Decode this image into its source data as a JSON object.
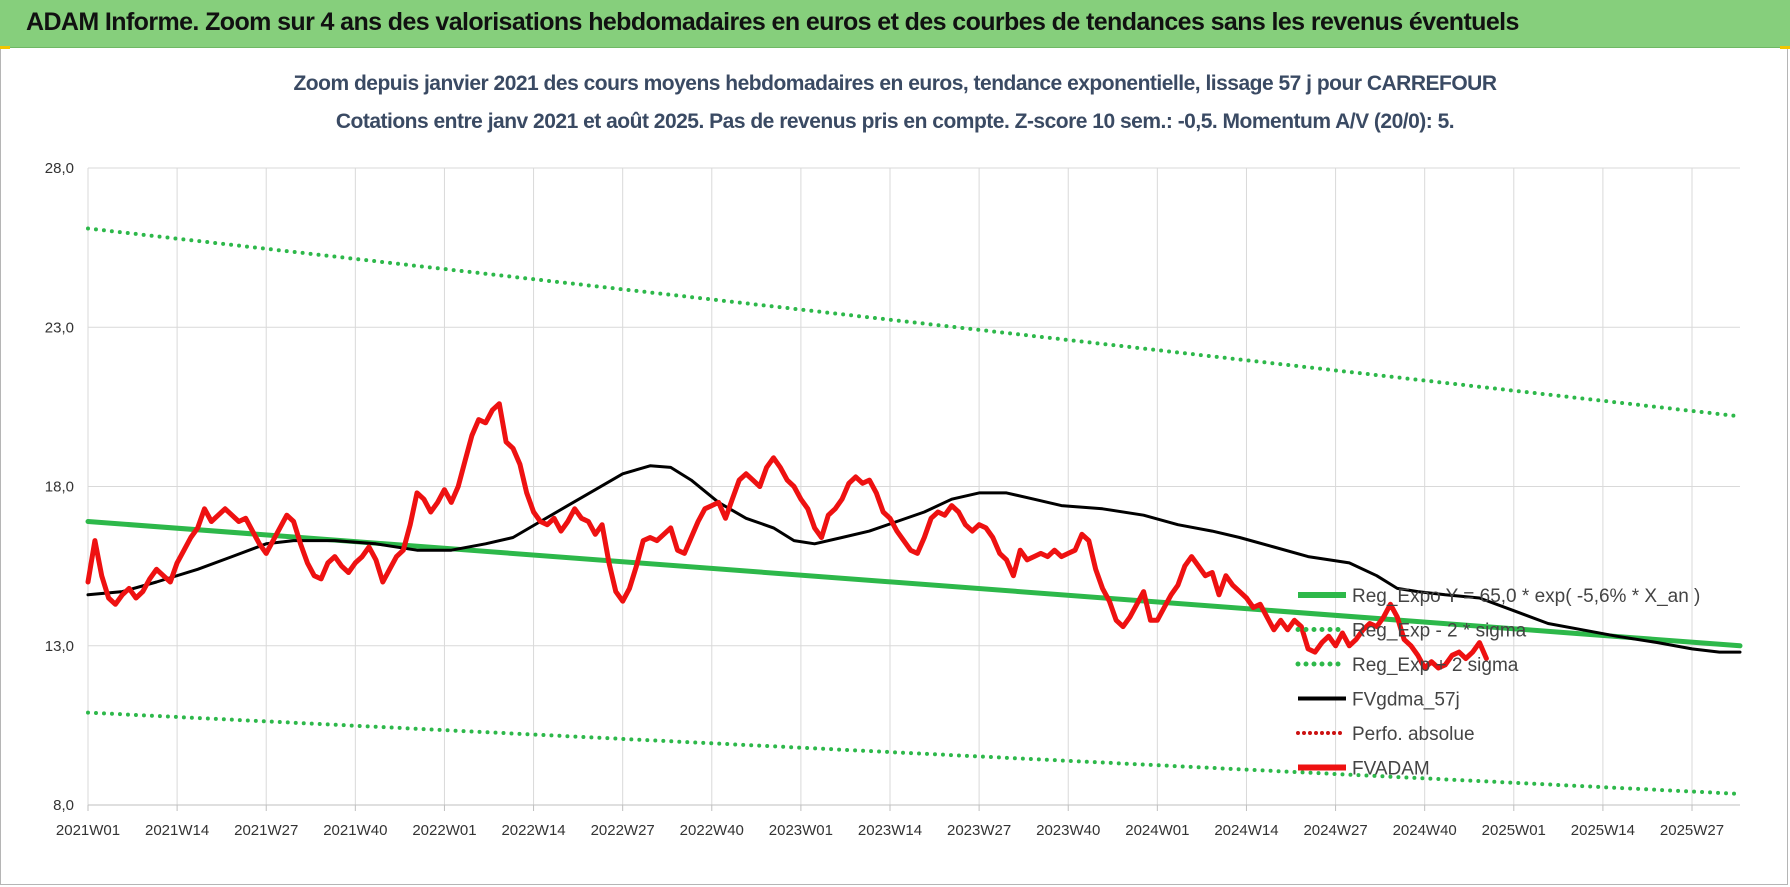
{
  "header": {
    "title": "ADAM Informe. Zoom sur 4 ans des valorisations hebdomadaires en euros et des courbes de tendances sans les revenus éventuels"
  },
  "colors": {
    "banner": "#86cf7c",
    "trend": "#2db84a",
    "price": "#ee1111",
    "smooth": "#000000",
    "perf": "#cc1111"
  },
  "chart_data": {
    "type": "line",
    "title": "Zoom depuis janvier 2021 des cours moyens hebdomadaires en euros, tendance exponentielle, lissage 57 j pour CARREFOUR",
    "subtitle": "Cotations entre janv 2021 et août 2025.  Pas de revenus pris en compte. Z-score 10 sem.: -0,5. Momentum A/V (20/0): 5.",
    "xlabel": "",
    "ylabel": "",
    "ylim": [
      8,
      28
    ],
    "yticks": [
      "28,0",
      "23,0",
      "18,0",
      "13,0",
      "8,0"
    ],
    "ytick_values": [
      28,
      23,
      18,
      13,
      8
    ],
    "xticks": [
      "2021W01",
      "2021W14",
      "2021W27",
      "2021W40",
      "2022W01",
      "2022W14",
      "2022W27",
      "2022W40",
      "2023W01",
      "2023W14",
      "2023W27",
      "2023W40",
      "2024W01",
      "2024W14",
      "2024W27",
      "2024W40",
      "2025W01",
      "2025W14",
      "2025W27"
    ],
    "weeks_total": 242,
    "grid": true,
    "legend_position": "bottom-right",
    "legend": [
      "Reg_Expo Y = 65,0 * exp( -5,6% * X_an )",
      "Reg_Exp - 2 * sigma",
      "Reg_Exp + 2 sigma",
      "FVgdma_57j",
      "Perfo. absolue",
      "FVADAM"
    ],
    "series": [
      {
        "name": "Reg_Expo Y = 65,0 * exp( -5,6% * X_an )",
        "style": "solid",
        "color": "#2db84a",
        "points": [
          [
            0,
            16.9
          ],
          [
            241,
            13.0
          ]
        ]
      },
      {
        "name": "Reg_Exp - 2 * sigma",
        "style": "dotted",
        "color": "#2db84a",
        "points": [
          [
            0,
            10.9
          ],
          [
            241,
            8.35
          ]
        ]
      },
      {
        "name": "Reg_Exp + 2 sigma",
        "style": "dotted",
        "color": "#2db84a",
        "points": [
          [
            0,
            26.1
          ],
          [
            241,
            20.2
          ]
        ]
      },
      {
        "name": "FVgdma_57j",
        "style": "solid",
        "color": "#000000",
        "points": [
          [
            0,
            14.6
          ],
          [
            5,
            14.7
          ],
          [
            10,
            15.0
          ],
          [
            16,
            15.4
          ],
          [
            21,
            15.8
          ],
          [
            26,
            16.2
          ],
          [
            30,
            16.3
          ],
          [
            36,
            16.3
          ],
          [
            42,
            16.2
          ],
          [
            48,
            16.0
          ],
          [
            53,
            16.0
          ],
          [
            58,
            16.2
          ],
          [
            62,
            16.4
          ],
          [
            66,
            16.9
          ],
          [
            70,
            17.4
          ],
          [
            74,
            17.9
          ],
          [
            78,
            18.4
          ],
          [
            82,
            18.65
          ],
          [
            85,
            18.6
          ],
          [
            88,
            18.2
          ],
          [
            92,
            17.5
          ],
          [
            96,
            17.0
          ],
          [
            100,
            16.7
          ],
          [
            103,
            16.3
          ],
          [
            106,
            16.2
          ],
          [
            110,
            16.4
          ],
          [
            114,
            16.6
          ],
          [
            118,
            16.9
          ],
          [
            122,
            17.2
          ],
          [
            126,
            17.6
          ],
          [
            130,
            17.8
          ],
          [
            134,
            17.8
          ],
          [
            138,
            17.6
          ],
          [
            142,
            17.4
          ],
          [
            148,
            17.3
          ],
          [
            154,
            17.1
          ],
          [
            159,
            16.8
          ],
          [
            164,
            16.6
          ],
          [
            168,
            16.4
          ],
          [
            173,
            16.1
          ],
          [
            178,
            15.8
          ],
          [
            184,
            15.6
          ],
          [
            188,
            15.2
          ],
          [
            191,
            14.8
          ],
          [
            194,
            14.7
          ],
          [
            198,
            14.6
          ],
          [
            203,
            14.5
          ],
          [
            208,
            14.1
          ],
          [
            213,
            13.7
          ],
          [
            218,
            13.5
          ],
          [
            223,
            13.3
          ],
          [
            229,
            13.1
          ],
          [
            234,
            12.9
          ],
          [
            238,
            12.8
          ],
          [
            241,
            12.8
          ]
        ]
      },
      {
        "name": "Perfo. absolue",
        "style": "dotted",
        "color": "#cc1111",
        "points": []
      },
      {
        "name": "FVADAM",
        "style": "solid",
        "color": "#ee1111",
        "points": [
          [
            0,
            15.0
          ],
          [
            1,
            16.3
          ],
          [
            2,
            15.2
          ],
          [
            3,
            14.5
          ],
          [
            4,
            14.3
          ],
          [
            5,
            14.6
          ],
          [
            6,
            14.8
          ],
          [
            7,
            14.5
          ],
          [
            8,
            14.7
          ],
          [
            9,
            15.1
          ],
          [
            10,
            15.4
          ],
          [
            11,
            15.2
          ],
          [
            12,
            15.0
          ],
          [
            13,
            15.6
          ],
          [
            14,
            16.0
          ],
          [
            15,
            16.4
          ],
          [
            16,
            16.7
          ],
          [
            17,
            17.3
          ],
          [
            18,
            16.9
          ],
          [
            19,
            17.1
          ],
          [
            20,
            17.3
          ],
          [
            21,
            17.1
          ],
          [
            22,
            16.9
          ],
          [
            23,
            17.0
          ],
          [
            24,
            16.6
          ],
          [
            25,
            16.2
          ],
          [
            26,
            15.9
          ],
          [
            27,
            16.3
          ],
          [
            28,
            16.7
          ],
          [
            29,
            17.1
          ],
          [
            30,
            16.9
          ],
          [
            31,
            16.2
          ],
          [
            32,
            15.6
          ],
          [
            33,
            15.2
          ],
          [
            34,
            15.1
          ],
          [
            35,
            15.6
          ],
          [
            36,
            15.8
          ],
          [
            37,
            15.5
          ],
          [
            38,
            15.3
          ],
          [
            39,
            15.6
          ],
          [
            40,
            15.8
          ],
          [
            41,
            16.1
          ],
          [
            42,
            15.7
          ],
          [
            43,
            15.0
          ],
          [
            44,
            15.4
          ],
          [
            45,
            15.8
          ],
          [
            46,
            16.0
          ],
          [
            47,
            16.8
          ],
          [
            48,
            17.8
          ],
          [
            49,
            17.6
          ],
          [
            50,
            17.2
          ],
          [
            51,
            17.5
          ],
          [
            52,
            17.9
          ],
          [
            53,
            17.5
          ],
          [
            54,
            18.0
          ],
          [
            55,
            18.8
          ],
          [
            56,
            19.6
          ],
          [
            57,
            20.1
          ],
          [
            58,
            20.0
          ],
          [
            59,
            20.4
          ],
          [
            60,
            20.6
          ],
          [
            61,
            19.4
          ],
          [
            62,
            19.2
          ],
          [
            63,
            18.7
          ],
          [
            64,
            17.8
          ],
          [
            65,
            17.2
          ],
          [
            66,
            16.9
          ],
          [
            67,
            16.8
          ],
          [
            68,
            17.0
          ],
          [
            69,
            16.6
          ],
          [
            70,
            16.9
          ],
          [
            71,
            17.3
          ],
          [
            72,
            17.0
          ],
          [
            73,
            16.9
          ],
          [
            74,
            16.5
          ],
          [
            75,
            16.8
          ],
          [
            76,
            15.6
          ],
          [
            77,
            14.7
          ],
          [
            78,
            14.4
          ],
          [
            79,
            14.8
          ],
          [
            80,
            15.5
          ],
          [
            81,
            16.3
          ],
          [
            82,
            16.4
          ],
          [
            83,
            16.3
          ],
          [
            84,
            16.5
          ],
          [
            85,
            16.7
          ],
          [
            86,
            16.0
          ],
          [
            87,
            15.9
          ],
          [
            88,
            16.4
          ],
          [
            89,
            16.9
          ],
          [
            90,
            17.3
          ],
          [
            91,
            17.4
          ],
          [
            92,
            17.5
          ],
          [
            93,
            17.0
          ],
          [
            94,
            17.6
          ],
          [
            95,
            18.2
          ],
          [
            96,
            18.4
          ],
          [
            97,
            18.2
          ],
          [
            98,
            18.0
          ],
          [
            99,
            18.6
          ],
          [
            100,
            18.9
          ],
          [
            101,
            18.6
          ],
          [
            102,
            18.2
          ],
          [
            103,
            18.0
          ],
          [
            104,
            17.6
          ],
          [
            105,
            17.3
          ],
          [
            106,
            16.7
          ],
          [
            107,
            16.4
          ],
          [
            108,
            17.1
          ],
          [
            109,
            17.3
          ],
          [
            110,
            17.6
          ],
          [
            111,
            18.1
          ],
          [
            112,
            18.3
          ],
          [
            113,
            18.1
          ],
          [
            114,
            18.2
          ],
          [
            115,
            17.8
          ],
          [
            116,
            17.2
          ],
          [
            117,
            17.0
          ],
          [
            118,
            16.6
          ],
          [
            119,
            16.3
          ],
          [
            120,
            16.0
          ],
          [
            121,
            15.9
          ],
          [
            122,
            16.4
          ],
          [
            123,
            17.0
          ],
          [
            124,
            17.2
          ],
          [
            125,
            17.1
          ],
          [
            126,
            17.4
          ],
          [
            127,
            17.2
          ],
          [
            128,
            16.8
          ],
          [
            129,
            16.6
          ],
          [
            130,
            16.8
          ],
          [
            131,
            16.7
          ],
          [
            132,
            16.4
          ],
          [
            133,
            15.9
          ],
          [
            134,
            15.7
          ],
          [
            135,
            15.2
          ],
          [
            136,
            16.0
          ],
          [
            137,
            15.7
          ],
          [
            138,
            15.8
          ],
          [
            139,
            15.9
          ],
          [
            140,
            15.8
          ],
          [
            141,
            16.0
          ],
          [
            142,
            15.8
          ],
          [
            143,
            15.9
          ],
          [
            144,
            16.0
          ],
          [
            145,
            16.5
          ],
          [
            146,
            16.3
          ],
          [
            147,
            15.4
          ],
          [
            148,
            14.8
          ],
          [
            149,
            14.4
          ],
          [
            150,
            13.8
          ],
          [
            151,
            13.6
          ],
          [
            152,
            13.9
          ],
          [
            153,
            14.3
          ],
          [
            154,
            14.7
          ],
          [
            155,
            13.8
          ],
          [
            156,
            13.8
          ],
          [
            157,
            14.2
          ],
          [
            158,
            14.6
          ],
          [
            159,
            14.9
          ],
          [
            160,
            15.5
          ],
          [
            161,
            15.8
          ],
          [
            162,
            15.5
          ],
          [
            163,
            15.2
          ],
          [
            164,
            15.3
          ],
          [
            165,
            14.6
          ],
          [
            166,
            15.2
          ],
          [
            167,
            14.9
          ],
          [
            168,
            14.7
          ],
          [
            169,
            14.5
          ],
          [
            170,
            14.2
          ],
          [
            171,
            14.3
          ],
          [
            172,
            13.9
          ],
          [
            173,
            13.5
          ],
          [
            174,
            13.8
          ],
          [
            175,
            13.5
          ],
          [
            176,
            13.8
          ],
          [
            177,
            13.6
          ],
          [
            178,
            12.9
          ],
          [
            179,
            12.8
          ],
          [
            180,
            13.1
          ],
          [
            181,
            13.3
          ],
          [
            182,
            13.0
          ],
          [
            183,
            13.4
          ],
          [
            184,
            13.0
          ],
          [
            185,
            13.2
          ],
          [
            186,
            13.5
          ],
          [
            187,
            13.7
          ],
          [
            188,
            13.6
          ],
          [
            189,
            13.9
          ],
          [
            190,
            14.3
          ],
          [
            191,
            13.9
          ],
          [
            192,
            13.2
          ],
          [
            193,
            13.0
          ],
          [
            194,
            12.7
          ],
          [
            195,
            12.3
          ],
          [
            196,
            12.5
          ],
          [
            197,
            12.3
          ],
          [
            198,
            12.4
          ],
          [
            199,
            12.7
          ],
          [
            200,
            12.8
          ],
          [
            201,
            12.6
          ],
          [
            202,
            12.8
          ],
          [
            203,
            13.1
          ],
          [
            204,
            12.6
          ]
        ]
      }
    ]
  }
}
